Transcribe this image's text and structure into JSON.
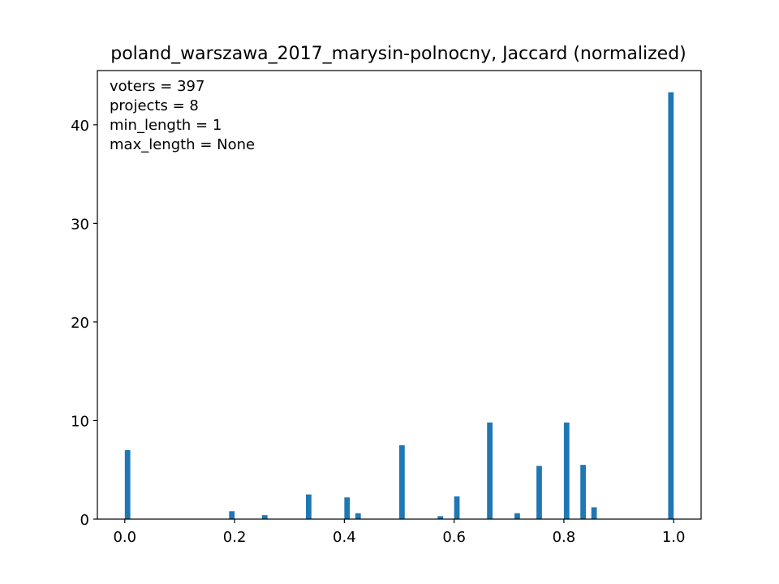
{
  "chart_data": {
    "type": "bar",
    "title": "poland_warszawa_2017_marysin-polnocny, Jaccard (normalized)",
    "xlabel": "",
    "ylabel": "",
    "xlim": [
      -0.05,
      1.05
    ],
    "ylim": [
      0,
      45.5
    ],
    "bar_width": 0.01,
    "color": "#1f77b4",
    "grid": false,
    "x_ticks": [
      0.0,
      0.2,
      0.4,
      0.6,
      0.8,
      1.0
    ],
    "x_tick_labels": [
      "0.0",
      "0.2",
      "0.4",
      "0.6",
      "0.8",
      "1.0"
    ],
    "y_ticks": [
      0,
      10,
      20,
      30,
      40
    ],
    "y_tick_labels": [
      "0",
      "10",
      "20",
      "30",
      "40"
    ],
    "x": [
      0.005,
      0.195,
      0.255,
      0.335,
      0.405,
      0.425,
      0.505,
      0.575,
      0.605,
      0.665,
      0.715,
      0.755,
      0.805,
      0.835,
      0.855,
      0.995
    ],
    "values": [
      7.0,
      0.8,
      0.4,
      2.5,
      2.2,
      0.6,
      7.5,
      0.3,
      2.3,
      9.8,
      0.6,
      5.4,
      9.8,
      5.5,
      1.2,
      43.3
    ],
    "annotations": [
      "voters = 397",
      "projects = 8",
      "min_length = 1",
      "max_length = None"
    ]
  }
}
